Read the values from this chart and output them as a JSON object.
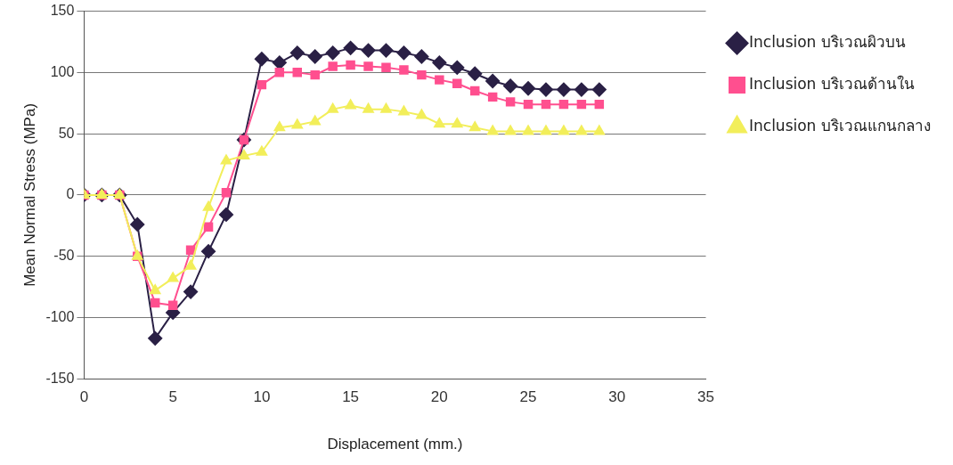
{
  "chart_data": {
    "type": "line",
    "xlabel": "Displacement (mm.)",
    "ylabel": "Mean Normal Stress (MPa)",
    "x": [
      0,
      1,
      2,
      3,
      4,
      5,
      6,
      7,
      8,
      9,
      10,
      11,
      12,
      13,
      14,
      15,
      16,
      17,
      18,
      19,
      20,
      21,
      22,
      23,
      24,
      25,
      26,
      27,
      28,
      29
    ],
    "series": [
      {
        "name": "Inclusion บริเวณผิวบน",
        "color": "#2a2045",
        "marker": "diamond",
        "values": [
          0,
          0,
          0,
          -24,
          -117,
          -96,
          -79,
          -46,
          -16,
          45,
          111,
          108,
          116,
          113,
          116,
          120,
          118,
          118,
          116,
          113,
          108,
          104,
          99,
          93,
          89,
          87,
          86,
          86,
          86,
          86
        ]
      },
      {
        "name": "Inclusion บริเวณด้านใน",
        "color": "#ff4f8f",
        "marker": "square",
        "values": [
          0,
          0,
          0,
          -50,
          -88,
          -90,
          -45,
          -26,
          2,
          45,
          90,
          100,
          100,
          98,
          105,
          106,
          105,
          104,
          102,
          98,
          94,
          91,
          85,
          80,
          76,
          74,
          74,
          74,
          74,
          74
        ]
      },
      {
        "name": "Inclusion บริเวณแกนกลาง",
        "color": "#f2ee5a",
        "marker": "triangle",
        "values": [
          0,
          0,
          0,
          -50,
          -78,
          -68,
          -58,
          -10,
          28,
          32,
          35,
          55,
          57,
          60,
          70,
          73,
          70,
          70,
          68,
          65,
          58,
          58,
          55,
          52,
          52,
          52,
          52,
          52,
          52,
          52
        ]
      }
    ],
    "xlim": [
      0,
      35
    ],
    "xticks": [
      0,
      5,
      10,
      15,
      20,
      25,
      30,
      35
    ],
    "ylim": [
      -150,
      150
    ],
    "yticks": [
      -150,
      -100,
      -50,
      0,
      50,
      100,
      150
    ],
    "grid": "y",
    "legend": "top right",
    "line_style": "solid"
  }
}
